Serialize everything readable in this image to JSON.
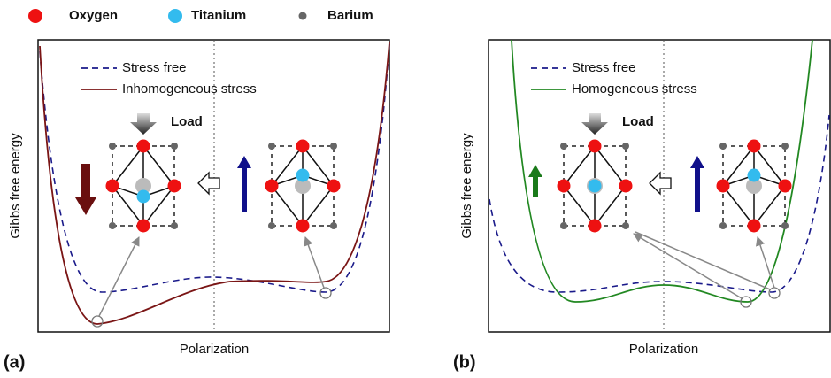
{
  "atom_legend": [
    {
      "label": "Oxygen"
    },
    {
      "label": "Titanium"
    },
    {
      "label": "Barium"
    }
  ],
  "panels": [
    {
      "label": "(a)",
      "y_axis_label": "Gibbs free energy",
      "x_axis_label": "Polarization",
      "legend": [
        "Stress free",
        "Inhomogeneous stress"
      ],
      "load_label": "Load"
    },
    {
      "label": "(b)",
      "y_axis_label": "Gibbs free energy",
      "x_axis_label": "Polarization",
      "legend": [
        "Stress free",
        "Homogeneous stress"
      ],
      "load_label": "Load"
    }
  ]
}
